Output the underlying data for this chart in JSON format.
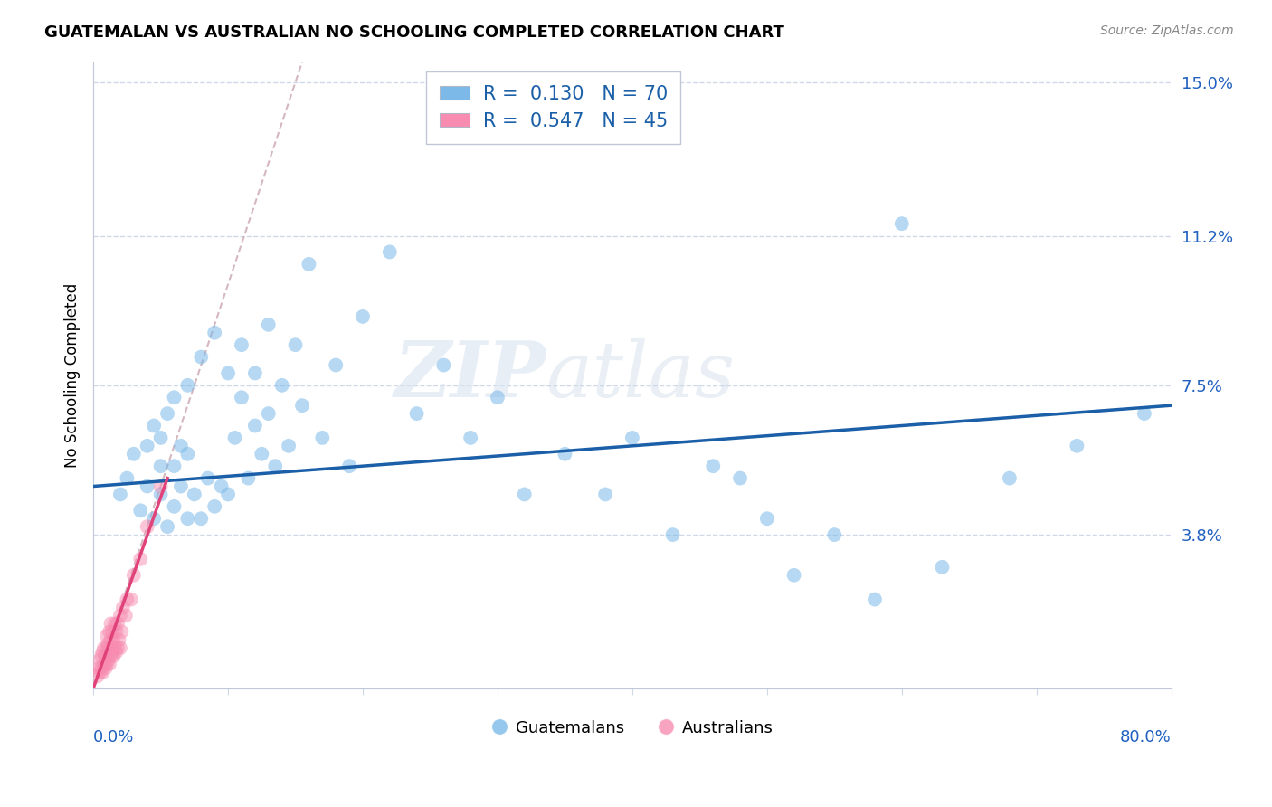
{
  "title": "GUATEMALAN VS AUSTRALIAN NO SCHOOLING COMPLETED CORRELATION CHART",
  "source": "Source: ZipAtlas.com",
  "ylabel": "No Schooling Completed",
  "yticks": [
    0.0,
    0.038,
    0.075,
    0.112,
    0.15
  ],
  "ytick_labels": [
    "",
    "3.8%",
    "7.5%",
    "11.2%",
    "15.0%"
  ],
  "xlim": [
    0.0,
    0.8
  ],
  "ylim": [
    0.0,
    0.155
  ],
  "blue_R": 0.13,
  "blue_N": 70,
  "pink_R": 0.547,
  "pink_N": 45,
  "blue_color": "#7cb9e8",
  "pink_color": "#f78cb0",
  "blue_line_color": "#1a5fa8",
  "pink_line_color": "#e0427a",
  "diag_line_color": "#d0b0b8",
  "watermark_zip": "ZIP",
  "watermark_atlas": "atlas",
  "legend_label_blue": "Guatemalans",
  "legend_label_pink": "Australians",
  "blue_scatter_x": [
    0.02,
    0.025,
    0.03,
    0.035,
    0.04,
    0.04,
    0.045,
    0.045,
    0.05,
    0.05,
    0.05,
    0.055,
    0.055,
    0.06,
    0.06,
    0.06,
    0.065,
    0.065,
    0.07,
    0.07,
    0.07,
    0.075,
    0.08,
    0.08,
    0.085,
    0.09,
    0.09,
    0.095,
    0.1,
    0.1,
    0.105,
    0.11,
    0.11,
    0.115,
    0.12,
    0.12,
    0.125,
    0.13,
    0.13,
    0.135,
    0.14,
    0.145,
    0.15,
    0.155,
    0.16,
    0.17,
    0.18,
    0.19,
    0.2,
    0.22,
    0.24,
    0.26,
    0.28,
    0.3,
    0.32,
    0.35,
    0.38,
    0.4,
    0.43,
    0.46,
    0.48,
    0.5,
    0.52,
    0.55,
    0.58,
    0.6,
    0.63,
    0.68,
    0.73,
    0.78
  ],
  "blue_scatter_y": [
    0.048,
    0.052,
    0.058,
    0.044,
    0.05,
    0.06,
    0.042,
    0.065,
    0.048,
    0.055,
    0.062,
    0.04,
    0.068,
    0.045,
    0.055,
    0.072,
    0.05,
    0.06,
    0.042,
    0.058,
    0.075,
    0.048,
    0.042,
    0.082,
    0.052,
    0.045,
    0.088,
    0.05,
    0.048,
    0.078,
    0.062,
    0.072,
    0.085,
    0.052,
    0.065,
    0.078,
    0.058,
    0.09,
    0.068,
    0.055,
    0.075,
    0.06,
    0.085,
    0.07,
    0.105,
    0.062,
    0.08,
    0.055,
    0.092,
    0.108,
    0.068,
    0.08,
    0.062,
    0.072,
    0.048,
    0.058,
    0.048,
    0.062,
    0.038,
    0.055,
    0.052,
    0.042,
    0.028,
    0.038,
    0.022,
    0.115,
    0.03,
    0.052,
    0.06,
    0.068
  ],
  "pink_scatter_x": [
    0.003,
    0.004,
    0.005,
    0.005,
    0.006,
    0.006,
    0.007,
    0.007,
    0.008,
    0.008,
    0.009,
    0.009,
    0.01,
    0.01,
    0.01,
    0.011,
    0.011,
    0.012,
    0.012,
    0.012,
    0.013,
    0.013,
    0.013,
    0.014,
    0.014,
    0.015,
    0.015,
    0.016,
    0.016,
    0.017,
    0.017,
    0.018,
    0.018,
    0.019,
    0.02,
    0.02,
    0.021,
    0.022,
    0.024,
    0.025,
    0.028,
    0.03,
    0.035,
    0.04,
    0.05
  ],
  "pink_scatter_y": [
    0.003,
    0.005,
    0.004,
    0.007,
    0.005,
    0.008,
    0.004,
    0.009,
    0.006,
    0.01,
    0.005,
    0.008,
    0.006,
    0.01,
    0.013,
    0.007,
    0.011,
    0.006,
    0.01,
    0.014,
    0.008,
    0.012,
    0.016,
    0.009,
    0.014,
    0.008,
    0.012,
    0.01,
    0.016,
    0.009,
    0.014,
    0.01,
    0.016,
    0.012,
    0.01,
    0.018,
    0.014,
    0.02,
    0.018,
    0.022,
    0.022,
    0.028,
    0.032,
    0.04,
    0.05
  ],
  "blue_trend_x0": 0.0,
  "blue_trend_y0": 0.05,
  "blue_trend_x1": 0.8,
  "blue_trend_y1": 0.07,
  "pink_trend_x0": 0.0,
  "pink_trend_y0": 0.0,
  "pink_trend_x1": 0.055,
  "pink_trend_y1": 0.052
}
